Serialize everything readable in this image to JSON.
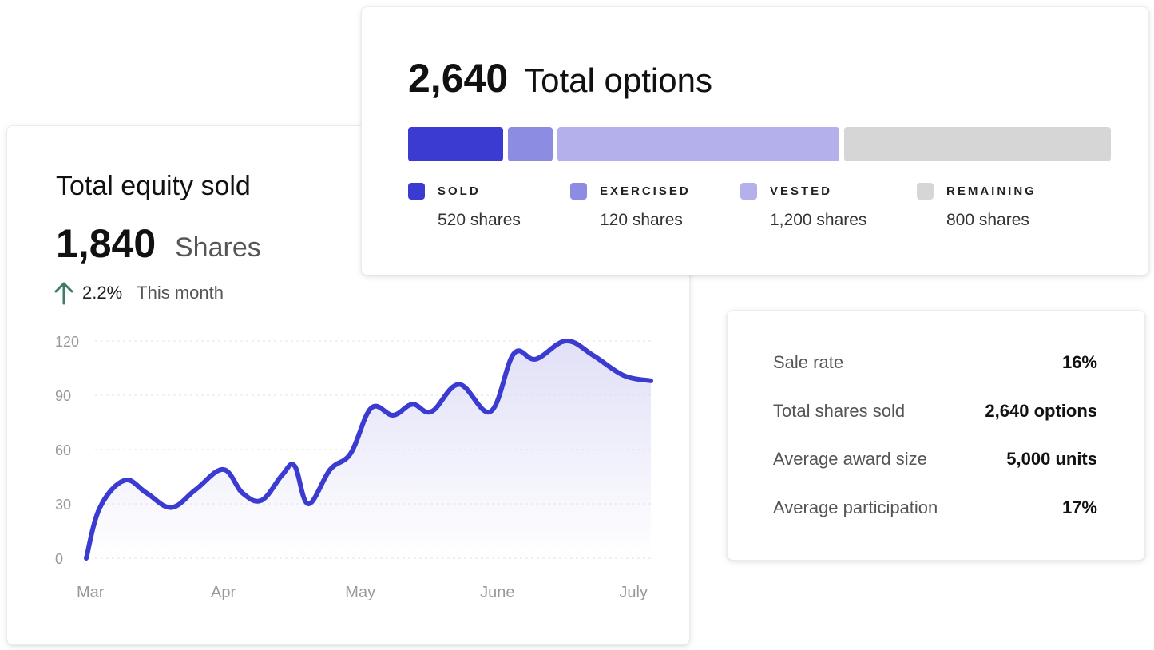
{
  "equity": {
    "title": "Total equity sold",
    "value": "1,840",
    "unit": "Shares",
    "change_pct": "2.2%",
    "change_period": "This month",
    "icon": "arrow-up-icon"
  },
  "options": {
    "total": "2,640",
    "label": "Total options",
    "segments": [
      {
        "label": "SOLD",
        "shares": "520 shares",
        "color": "#3b3bd1"
      },
      {
        "label": "EXERCISED",
        "shares": "120 shares",
        "color": "#8c8ce2"
      },
      {
        "label": "VESTED",
        "shares": "1,200 shares",
        "color": "#b3b0ec"
      },
      {
        "label": "REMAINING",
        "shares": "800 shares",
        "color": "#d6d6d6"
      }
    ]
  },
  "stats": [
    {
      "label": "Sale rate",
      "value": "16%"
    },
    {
      "label": "Total shares sold",
      "value": "2,640 options"
    },
    {
      "label": "Average award size",
      "value": "5,000 units"
    },
    {
      "label": "Average participation",
      "value": "17%"
    }
  ],
  "colors": {
    "accent": "#3b3bd1",
    "up_arrow": "#3f7a6a",
    "area_fill": "#dddcf6"
  },
  "chart_data": {
    "type": "line",
    "title": "",
    "xlabel": "",
    "ylabel": "",
    "ylim": [
      0,
      120
    ],
    "yticks": [
      0,
      30,
      60,
      90,
      120
    ],
    "x_tick_labels": [
      "Mar",
      "Apr",
      "May",
      "June",
      "July"
    ],
    "grid": true,
    "area_fill": true,
    "series": [
      {
        "x": [
          0,
          0.1,
          0.28,
          0.44,
          0.62,
          0.8,
          1.0,
          1.14,
          1.28,
          1.43,
          1.52,
          1.62,
          1.78,
          1.93,
          2.08,
          2.24,
          2.38,
          2.52,
          2.72,
          2.95,
          3.12,
          3.28,
          3.5,
          3.7,
          3.92,
          4.12
        ],
        "y": [
          0,
          28,
          43,
          36,
          28,
          38,
          49,
          36,
          32,
          46,
          51,
          30,
          49,
          58,
          83,
          79,
          85,
          81,
          96,
          81,
          113,
          110,
          120,
          112,
          101,
          98
        ]
      }
    ]
  }
}
